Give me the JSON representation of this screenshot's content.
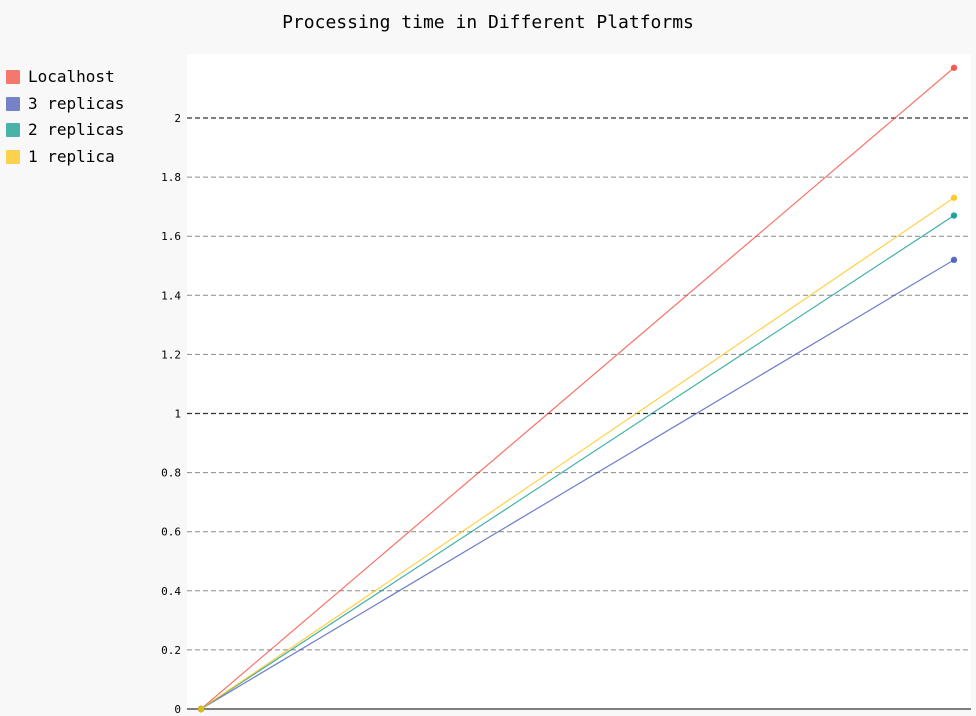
{
  "chart_data": {
    "type": "line",
    "title": "Processing time in Different Platforms",
    "xlabel": "",
    "ylabel": "",
    "x": [
      0,
      1
    ],
    "ylim": [
      0,
      2.2
    ],
    "y_ticks": [
      "0",
      "0.2",
      "0.4",
      "0.6",
      "0.8",
      "1",
      "1.2",
      "1.4",
      "1.6",
      "1.8",
      "2"
    ],
    "y_tick_values": [
      0,
      0.2,
      0.4,
      0.6,
      0.8,
      1,
      1.2,
      1.4,
      1.6,
      1.8,
      2
    ],
    "major_grid_values": [
      1,
      2
    ],
    "grid": true,
    "legend_position": "left",
    "series": [
      {
        "name": "Localhost",
        "values": [
          0,
          2.17
        ],
        "color": "#f44336"
      },
      {
        "name": "3 replicas",
        "values": [
          0,
          1.52
        ],
        "color": "#3f51b5"
      },
      {
        "name": "2 replicas",
        "values": [
          0,
          1.67
        ],
        "color": "#009688"
      },
      {
        "name": "1 replica",
        "values": [
          0,
          1.73
        ],
        "color": "#ffc107"
      }
    ]
  }
}
